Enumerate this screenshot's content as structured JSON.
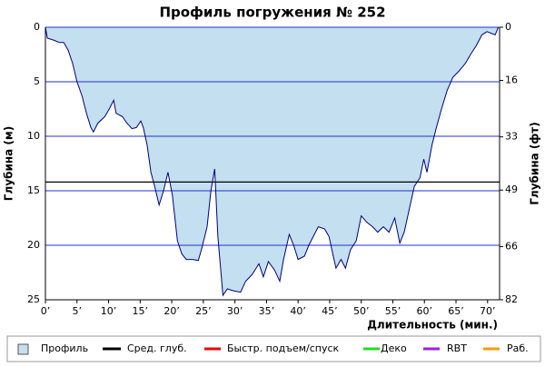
{
  "chart_data": {
    "type": "area",
    "title": "Профиль погружения № 252",
    "xlabel": "Длительность (мин.)",
    "ylabel": "Глубина (м)",
    "y2label": "Глубина (фт)",
    "x": [
      0,
      0.3,
      1.4,
      2.2,
      2.9,
      3.6,
      4.3,
      5,
      5.8,
      6.5,
      7.2,
      7.6,
      8.3,
      9.4,
      10.1,
      10.8,
      11.2,
      12.2,
      12.9,
      13.7,
      14.4,
      15.1,
      15.5,
      16.1,
      16.7,
      17.3,
      18,
      18.7,
      19.4,
      20.1,
      20.9,
      21.6,
      22.3,
      23.3,
      24.2,
      24.7,
      25.6,
      26.2,
      26.8,
      27.3,
      28.1,
      28.8,
      29.9,
      30.9,
      31.7,
      32.7,
      33.8,
      34.5,
      35.3,
      36.3,
      37.1,
      37.7,
      38.6,
      39.3,
      40,
      41,
      41.7,
      42.4,
      43.2,
      44.2,
      44.9,
      45.5,
      46,
      46.8,
      47.5,
      48.3,
      49.2,
      50,
      50.9,
      51.8,
      52.6,
      53.5,
      54.4,
      55.3,
      56.1,
      56.8,
      57.6,
      58.4,
      59.3,
      59.9,
      60.4,
      61.2,
      61.9,
      62.7,
      63.6,
      64.5,
      65.5,
      66.5,
      67.3,
      68.2,
      69.1,
      69.9,
      71.2,
      71.7
    ],
    "series": [
      {
        "name": "Профиль",
        "color": "#c3dff0",
        "line_color": "#000080",
        "values": [
          0,
          1,
          1.2,
          1.4,
          1.4,
          2.1,
          3.3,
          5,
          6.3,
          7.9,
          9.2,
          9.6,
          8.8,
          8.2,
          7.5,
          6.7,
          7.9,
          8.2,
          8.8,
          9.3,
          9.2,
          8.6,
          9.2,
          10.8,
          13.3,
          14.6,
          16.3,
          15,
          13.3,
          15.4,
          19.6,
          20.8,
          21.3,
          21.3,
          21.4,
          20.4,
          18.3,
          15,
          13,
          19.2,
          24.6,
          24,
          24.2,
          24.3,
          23.3,
          22.7,
          21.7,
          22.9,
          21.5,
          22.3,
          23.3,
          21.3,
          19,
          20,
          21.3,
          21,
          20,
          19.2,
          18.3,
          18.5,
          19.2,
          20.8,
          22.1,
          21.3,
          22.1,
          20.4,
          19.6,
          17.3,
          17.9,
          18.3,
          18.8,
          18.3,
          18.8,
          17.5,
          19.8,
          18.8,
          16.7,
          14.6,
          13.8,
          12.1,
          13.3,
          10.8,
          9.2,
          7.5,
          5.8,
          4.6,
          4,
          3.3,
          2.5,
          1.7,
          0.7,
          0.4,
          0.7,
          0
        ]
      }
    ],
    "average_depth": {
      "name": "Сред. глуб.",
      "color": "#000000",
      "value": 14.2
    },
    "legend_items": [
      {
        "name": "Быстр. подъем/спуск",
        "color": "#ee0000"
      },
      {
        "name": "Деко",
        "color": "#22dd22"
      },
      {
        "name": "RBT",
        "color": "#9922dd"
      },
      {
        "name": "Раб.",
        "color": "#ff9900"
      }
    ],
    "xlim": [
      0,
      71.9
    ],
    "xticks": [
      {
        "value": 0,
        "label": "0’"
      },
      {
        "value": 5,
        "label": "5’"
      },
      {
        "value": 10,
        "label": "10’"
      },
      {
        "value": 15,
        "label": "15’"
      },
      {
        "value": 20,
        "label": "20’"
      },
      {
        "value": 25,
        "label": "25’"
      },
      {
        "value": 30,
        "label": "30’"
      },
      {
        "value": 35,
        "label": "35’"
      },
      {
        "value": 40,
        "label": "40’"
      },
      {
        "value": 45,
        "label": "45’"
      },
      {
        "value": 50,
        "label": "50’"
      },
      {
        "value": 55,
        "label": "55’"
      },
      {
        "value": 60,
        "label": "60’"
      },
      {
        "value": 65,
        "label": "65’"
      },
      {
        "value": 70,
        "label": "70’"
      }
    ],
    "ylim": [
      0,
      25
    ],
    "yticks": [
      0,
      5,
      10,
      15,
      20,
      25
    ],
    "y2lim": [
      0,
      82.02
    ],
    "y2ticks": [
      0,
      16,
      33,
      49,
      66,
      82
    ],
    "grid": true,
    "grid_color": "#2233cc"
  }
}
